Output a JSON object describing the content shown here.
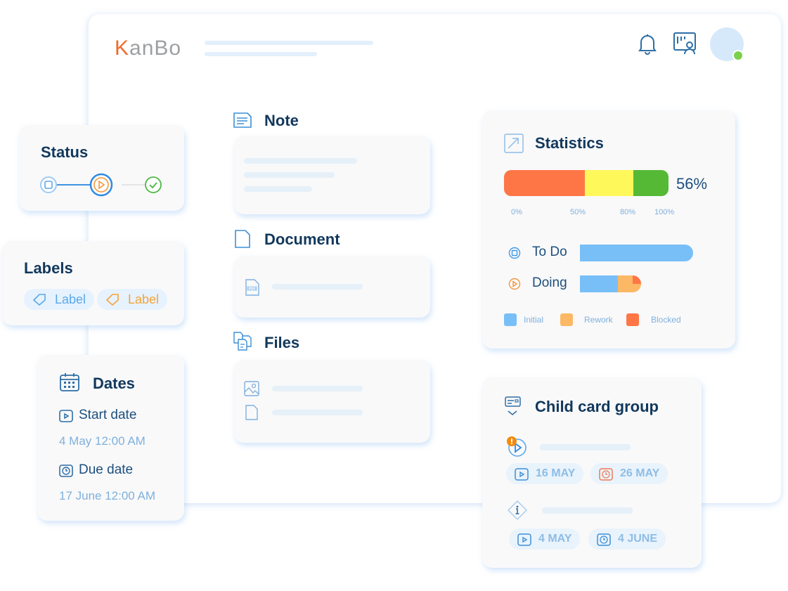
{
  "header": {
    "logo": "KanBo",
    "icons": [
      "bell-icon",
      "board-user-icon"
    ],
    "avatar_status_color": "#7bd14d"
  },
  "status": {
    "title": "Status",
    "steps": [
      "to-do",
      "doing",
      "done"
    ],
    "current_step": "doing"
  },
  "labels": {
    "title": "Labels",
    "items": [
      {
        "text": "Label",
        "color": "#5aa9ec"
      },
      {
        "text": "Label",
        "color": "#f5a33a"
      }
    ]
  },
  "dates": {
    "title": "Dates",
    "start_label": "Start date",
    "start_value": "4 May 12:00 AM",
    "due_label": "Due date",
    "due_value": "17 June 12:00 AM"
  },
  "note": {
    "title": "Note"
  },
  "document": {
    "title": "Document",
    "file_badge": "PDF"
  },
  "files": {
    "title": "Files"
  },
  "statistics": {
    "title": "Statistics",
    "percent": "56%",
    "scale": [
      {
        "label": "0%",
        "color": "#ff7646"
      },
      {
        "label": "50%",
        "color": "#fff85a"
      },
      {
        "label": "80%",
        "color": "#55b935"
      },
      {
        "label": "100%"
      }
    ],
    "rows": [
      {
        "label": "To Do",
        "initial": 100,
        "rework": 0,
        "blocked": 0
      },
      {
        "label": "Doing",
        "initial": 62,
        "rework": 25,
        "blocked": 13
      }
    ],
    "legend": [
      {
        "label": "Initial",
        "color": "#78bff8"
      },
      {
        "label": "Rework",
        "color": "#fdb865"
      },
      {
        "label": "Blocked",
        "color": "#ff7646"
      }
    ]
  },
  "child_group": {
    "title": "Child card group",
    "cards": [
      {
        "start": "16 MAY",
        "due": "26 MAY",
        "due_color": "#f07a56"
      },
      {
        "start": "4 MAY",
        "due": "4 JUNE",
        "due_color": "#3d8fd6"
      }
    ]
  }
}
